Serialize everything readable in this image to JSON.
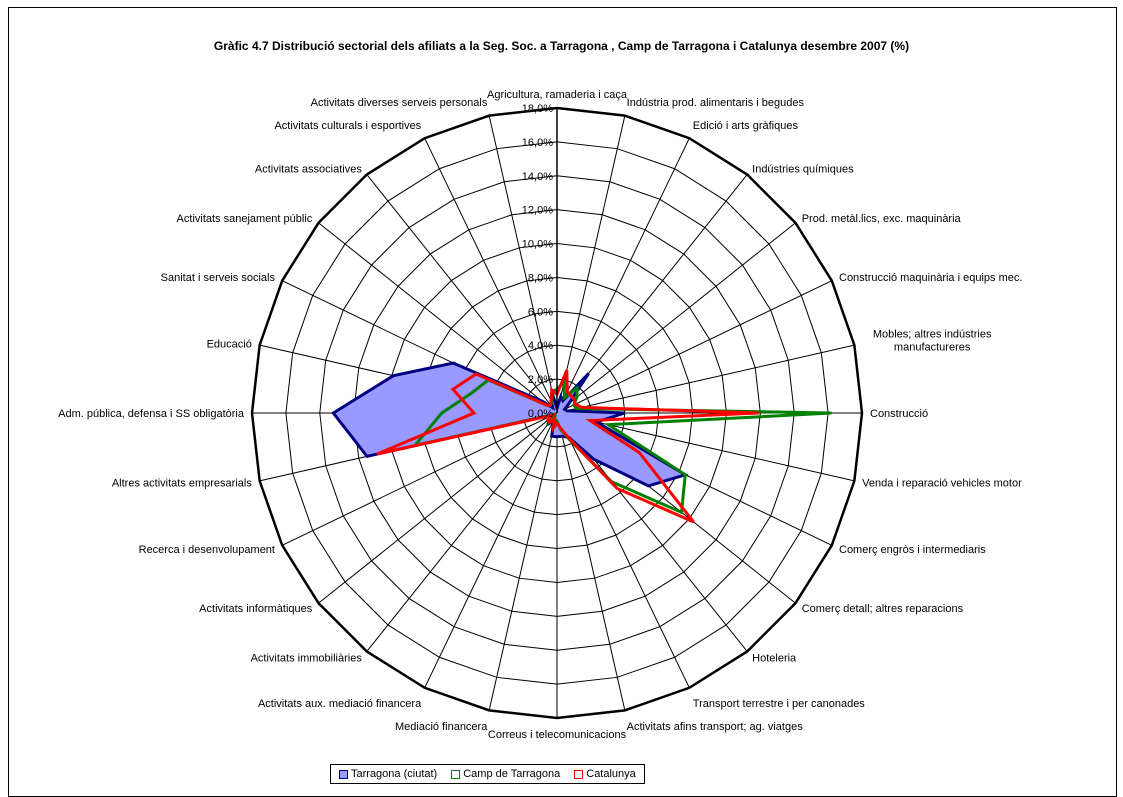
{
  "chart_data": {
    "type": "radar",
    "title": "Gràfic 4.7 Distribució sectorial dels afiliats a la Seg. Soc. a  Tarragona , Camp de Tarragona i Catalunya desembre 2007 (%)",
    "categories": [
      "Agricultura, ramaderia i caça",
      "Indústria prod. alimentaris i begudes",
      "Edició i arts gràfiques",
      "Indústries químiques",
      "Prod. metàl.lics, exc. maquinària",
      "Construcció maquinària i equips mec.",
      "Mobles; altres indústries manufactureres",
      "Construcció",
      "Venda i reparació vehicles motor",
      "Comerç engròs i intermediaris",
      "Comerç detall; altres reparacions",
      "Hoteleria",
      "Transport terrestre i per canonades",
      "Activitats afins transport; ag. viatges",
      "Correus i telecomunicacions",
      "Mediació financera",
      "Activitats aux. mediació financera",
      "Activitats immobiliàries",
      "Activitats informàtiques",
      "Recerca i desenvolupament",
      "Altres activitats empresarials",
      "Adm. pública, defensa i SS obligatòria",
      "Educació",
      "Sanitat i serveis socials",
      "Activitats sanejament públic",
      "Activitats associatives",
      "Activitats culturals i esportives",
      "Activitats diverses serveis personals"
    ],
    "rlim": [
      0,
      18
    ],
    "ticks": [
      "0,0%",
      "2,0%",
      "4,0%",
      "6,0%",
      "8,0%",
      "10,0%",
      "12,0%",
      "14,0%",
      "16,0%",
      "18,0%"
    ],
    "series": [
      {
        "name": "Tarragona (ciutat)",
        "color": "#000080",
        "fill": "#9999ff",
        "values": [
          0.3,
          1.0,
          0.8,
          3.0,
          0.9,
          0.5,
          0.6,
          4.0,
          2.4,
          8.4,
          6.9,
          3.5,
          1.6,
          1.4,
          1.4,
          1.4,
          0.4,
          0.9,
          0.4,
          0.2,
          11.5,
          13.2,
          9.9,
          6.8,
          1.1,
          0.4,
          0.8,
          1.0
        ]
      },
      {
        "name": "Camp de Tarragona",
        "color": "#008000",
        "fill": "none",
        "values": [
          1.4,
          1.9,
          1.0,
          1.9,
          1.5,
          1.1,
          1.2,
          16.2,
          3.1,
          8.4,
          9.4,
          5.2,
          1.8,
          1.0,
          0.5,
          0.9,
          0.3,
          0.7,
          0.5,
          0.2,
          8.6,
          6.8,
          5.2,
          4.5,
          0.7,
          0.6,
          0.7,
          1.3
        ]
      },
      {
        "name": "Catalunya",
        "color": "#ff0000",
        "fill": "none",
        "values": [
          1.1,
          2.6,
          1.4,
          1.3,
          1.3,
          1.2,
          1.5,
          11.9,
          2.0,
          5.4,
          10.3,
          5.7,
          1.7,
          0.9,
          0.6,
          0.9,
          0.4,
          0.7,
          0.7,
          0.3,
          10.9,
          4.9,
          6.3,
          5.3,
          0.7,
          0.6,
          0.8,
          1.4
        ]
      }
    ]
  }
}
